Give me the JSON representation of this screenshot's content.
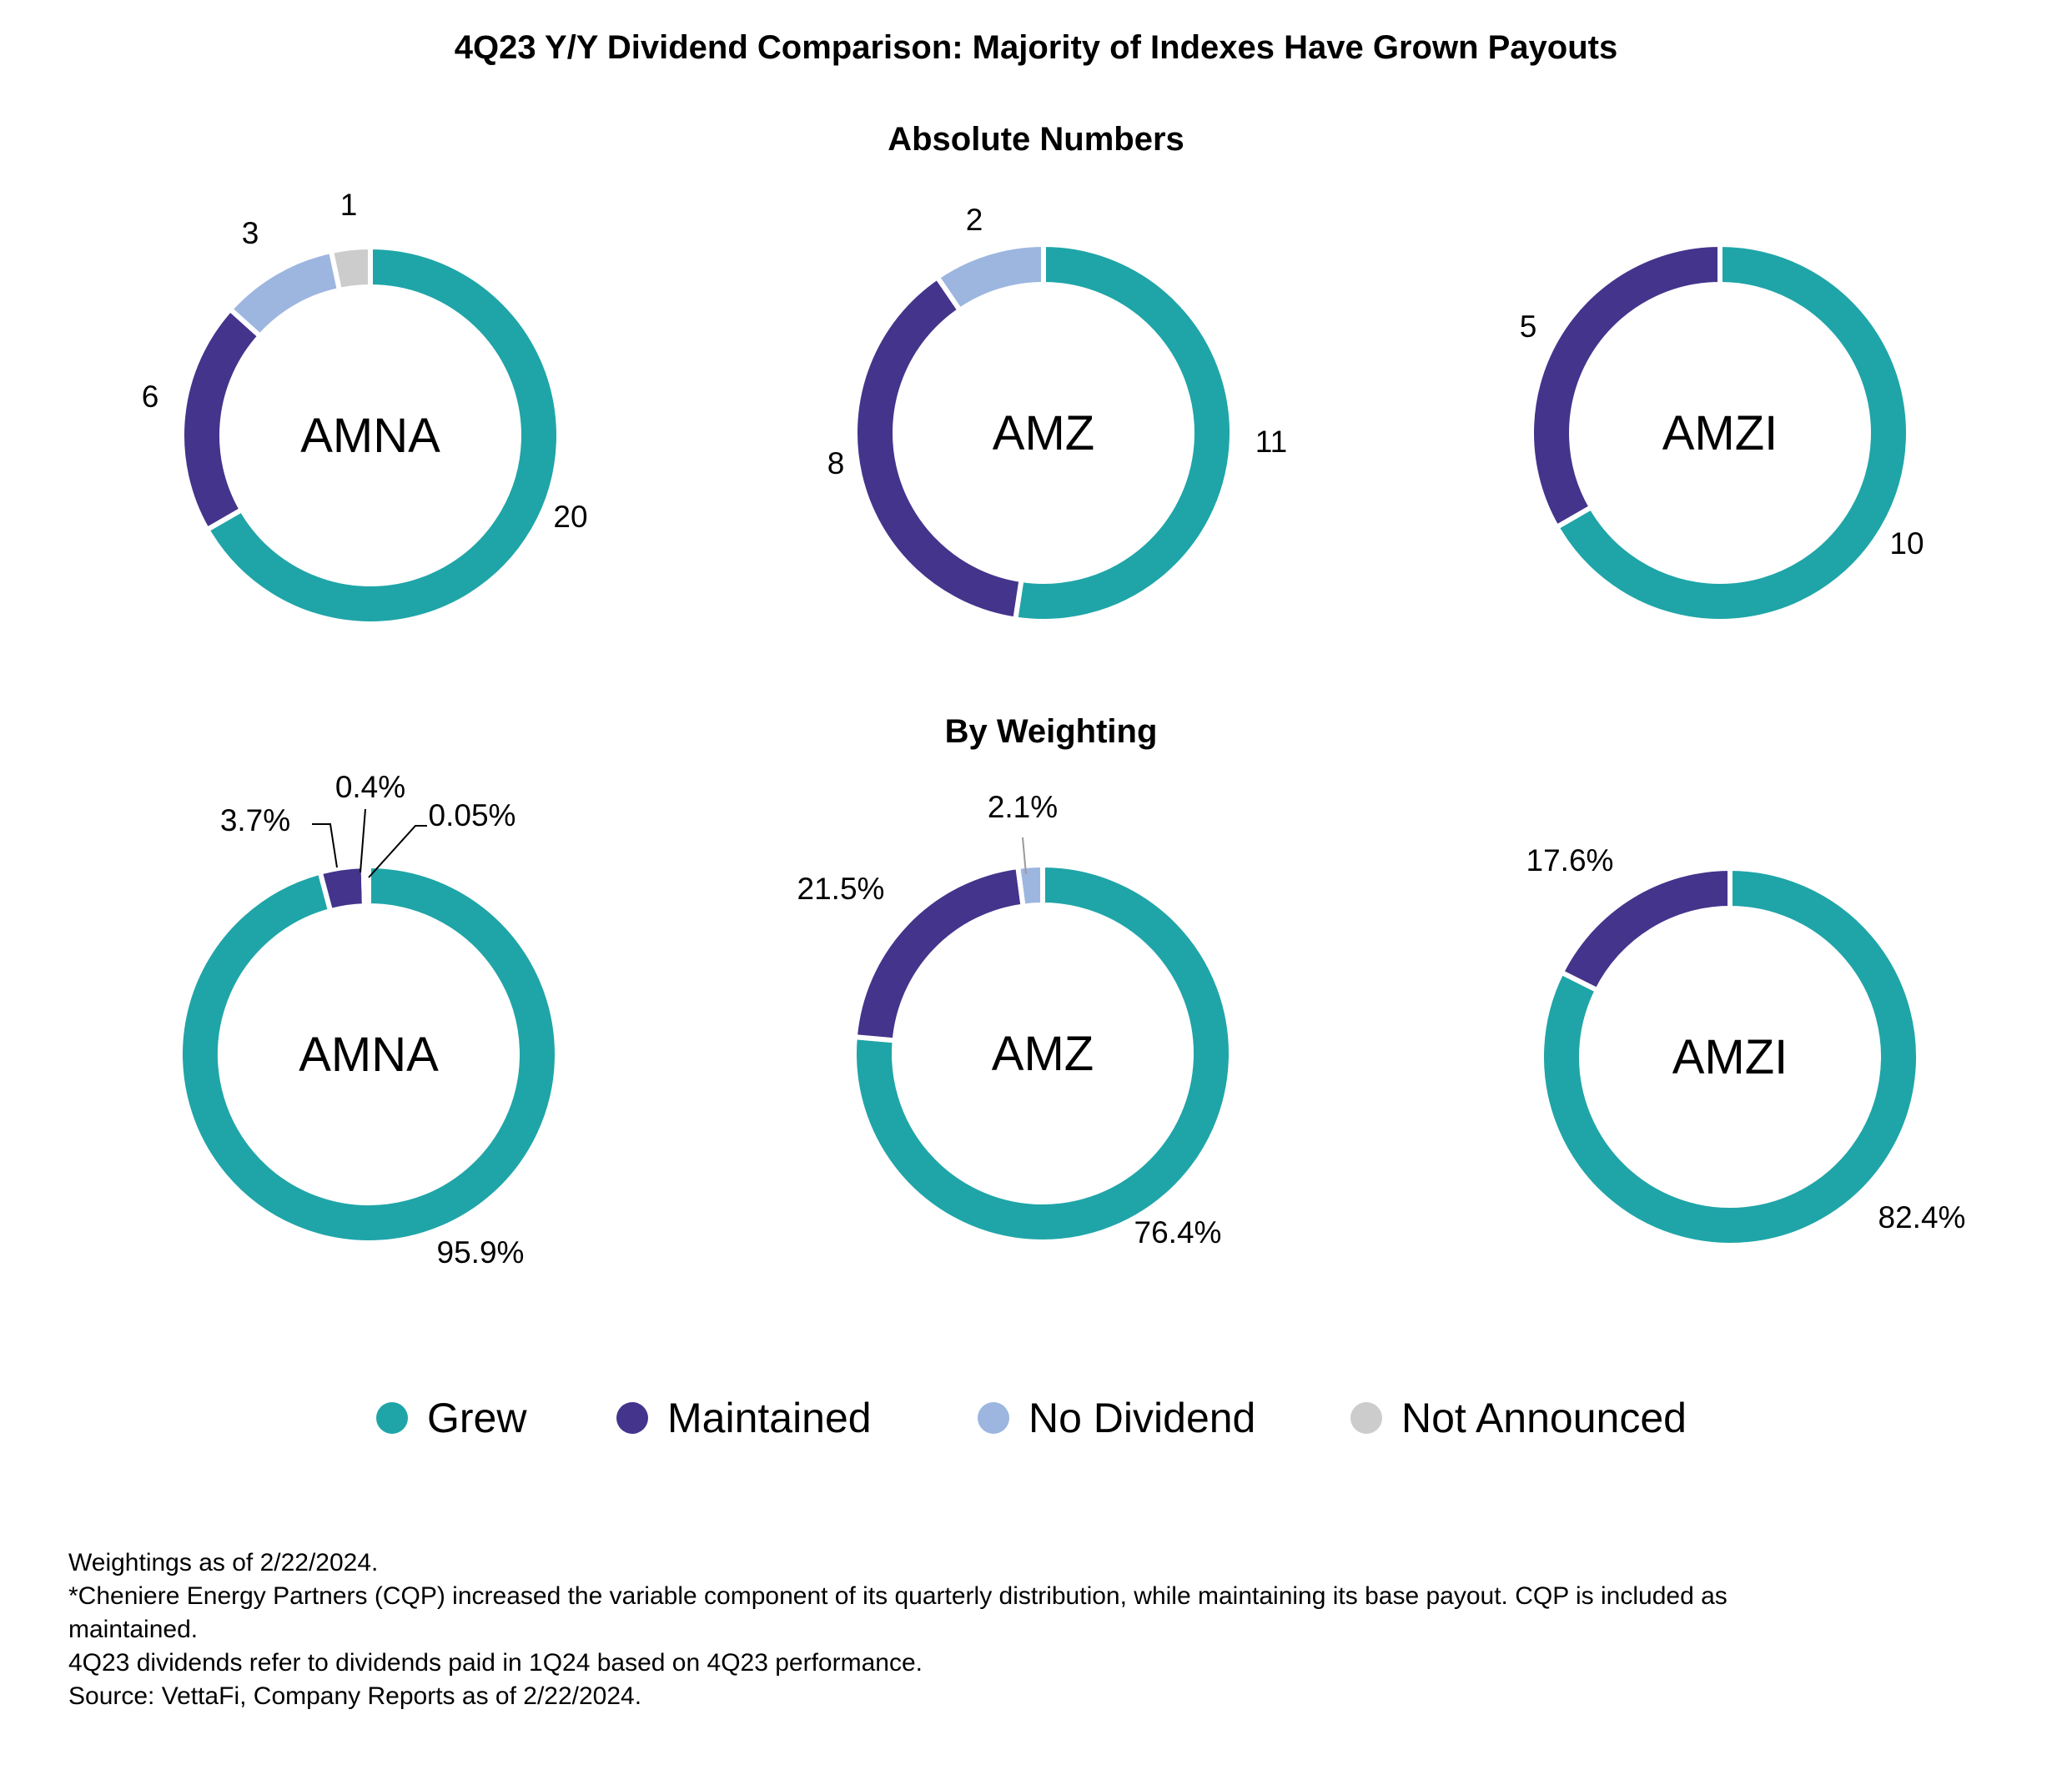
{
  "title": "4Q23 Y/Y Dividend Comparison: Majority of Indexes Have Grown Payouts",
  "sections": [
    {
      "key": "absolute",
      "title": "Absolute Numbers"
    },
    {
      "key": "weighting",
      "title": "By Weighting"
    }
  ],
  "colors": {
    "Grew": "#1FA5A8",
    "Maintained": "#44348C",
    "No Dividend": "#9DB6E0",
    "Not Announced": "#CCCCCC"
  },
  "legend": [
    "Grew",
    "Maintained",
    "No Dividend",
    "Not Announced"
  ],
  "chart_data": [
    {
      "type": "pie",
      "section": "absolute",
      "center_label": "AMNA",
      "slices": [
        {
          "category": "Grew",
          "value": 20,
          "label": "20"
        },
        {
          "category": "Maintained",
          "value": 6,
          "label": "6"
        },
        {
          "category": "No Dividend",
          "value": 3,
          "label": "3"
        },
        {
          "category": "Not Announced",
          "value": 1,
          "label": "1"
        }
      ]
    },
    {
      "type": "pie",
      "section": "absolute",
      "center_label": "AMZ",
      "slices": [
        {
          "category": "Grew",
          "value": 11,
          "label": "11"
        },
        {
          "category": "Maintained",
          "value": 8,
          "label": "8"
        },
        {
          "category": "No Dividend",
          "value": 2,
          "label": "2"
        }
      ]
    },
    {
      "type": "pie",
      "section": "absolute",
      "center_label": "AMZI",
      "slices": [
        {
          "category": "Grew",
          "value": 10,
          "label": "10"
        },
        {
          "category": "Maintained",
          "value": 5,
          "label": "5"
        }
      ]
    },
    {
      "type": "pie",
      "section": "weighting",
      "center_label": "AMNA",
      "slices": [
        {
          "category": "Grew",
          "value": 95.9,
          "label": "95.9%"
        },
        {
          "category": "Maintained",
          "value": 3.7,
          "label": "3.7%"
        },
        {
          "category": "No Dividend",
          "value": 0.4,
          "label": "0.4%"
        },
        {
          "category": "Not Announced",
          "value": 0.05,
          "label": "0.05%"
        }
      ]
    },
    {
      "type": "pie",
      "section": "weighting",
      "center_label": "AMZ",
      "slices": [
        {
          "category": "Grew",
          "value": 76.4,
          "label": "76.4%"
        },
        {
          "category": "Maintained",
          "value": 21.5,
          "label": "21.5%"
        },
        {
          "category": "No Dividend",
          "value": 2.1,
          "label": "2.1%"
        }
      ]
    },
    {
      "type": "pie",
      "section": "weighting",
      "center_label": "AMZI",
      "slices": [
        {
          "category": "Grew",
          "value": 82.4,
          "label": "82.4%"
        },
        {
          "category": "Maintained",
          "value": 17.6,
          "label": "17.6%"
        }
      ]
    }
  ],
  "notes": [
    "Weightings as of 2/22/2024.",
    "*Cheniere Energy Partners (CQP) increased the variable component of its quarterly distribution, while maintaining its base payout. CQP is included as",
    "maintained.",
    "4Q23 dividends refer to dividends paid in 1Q24 based on 4Q23 performance.",
    "Source: VettaFi, Company Reports as of 2/22/2024."
  ]
}
